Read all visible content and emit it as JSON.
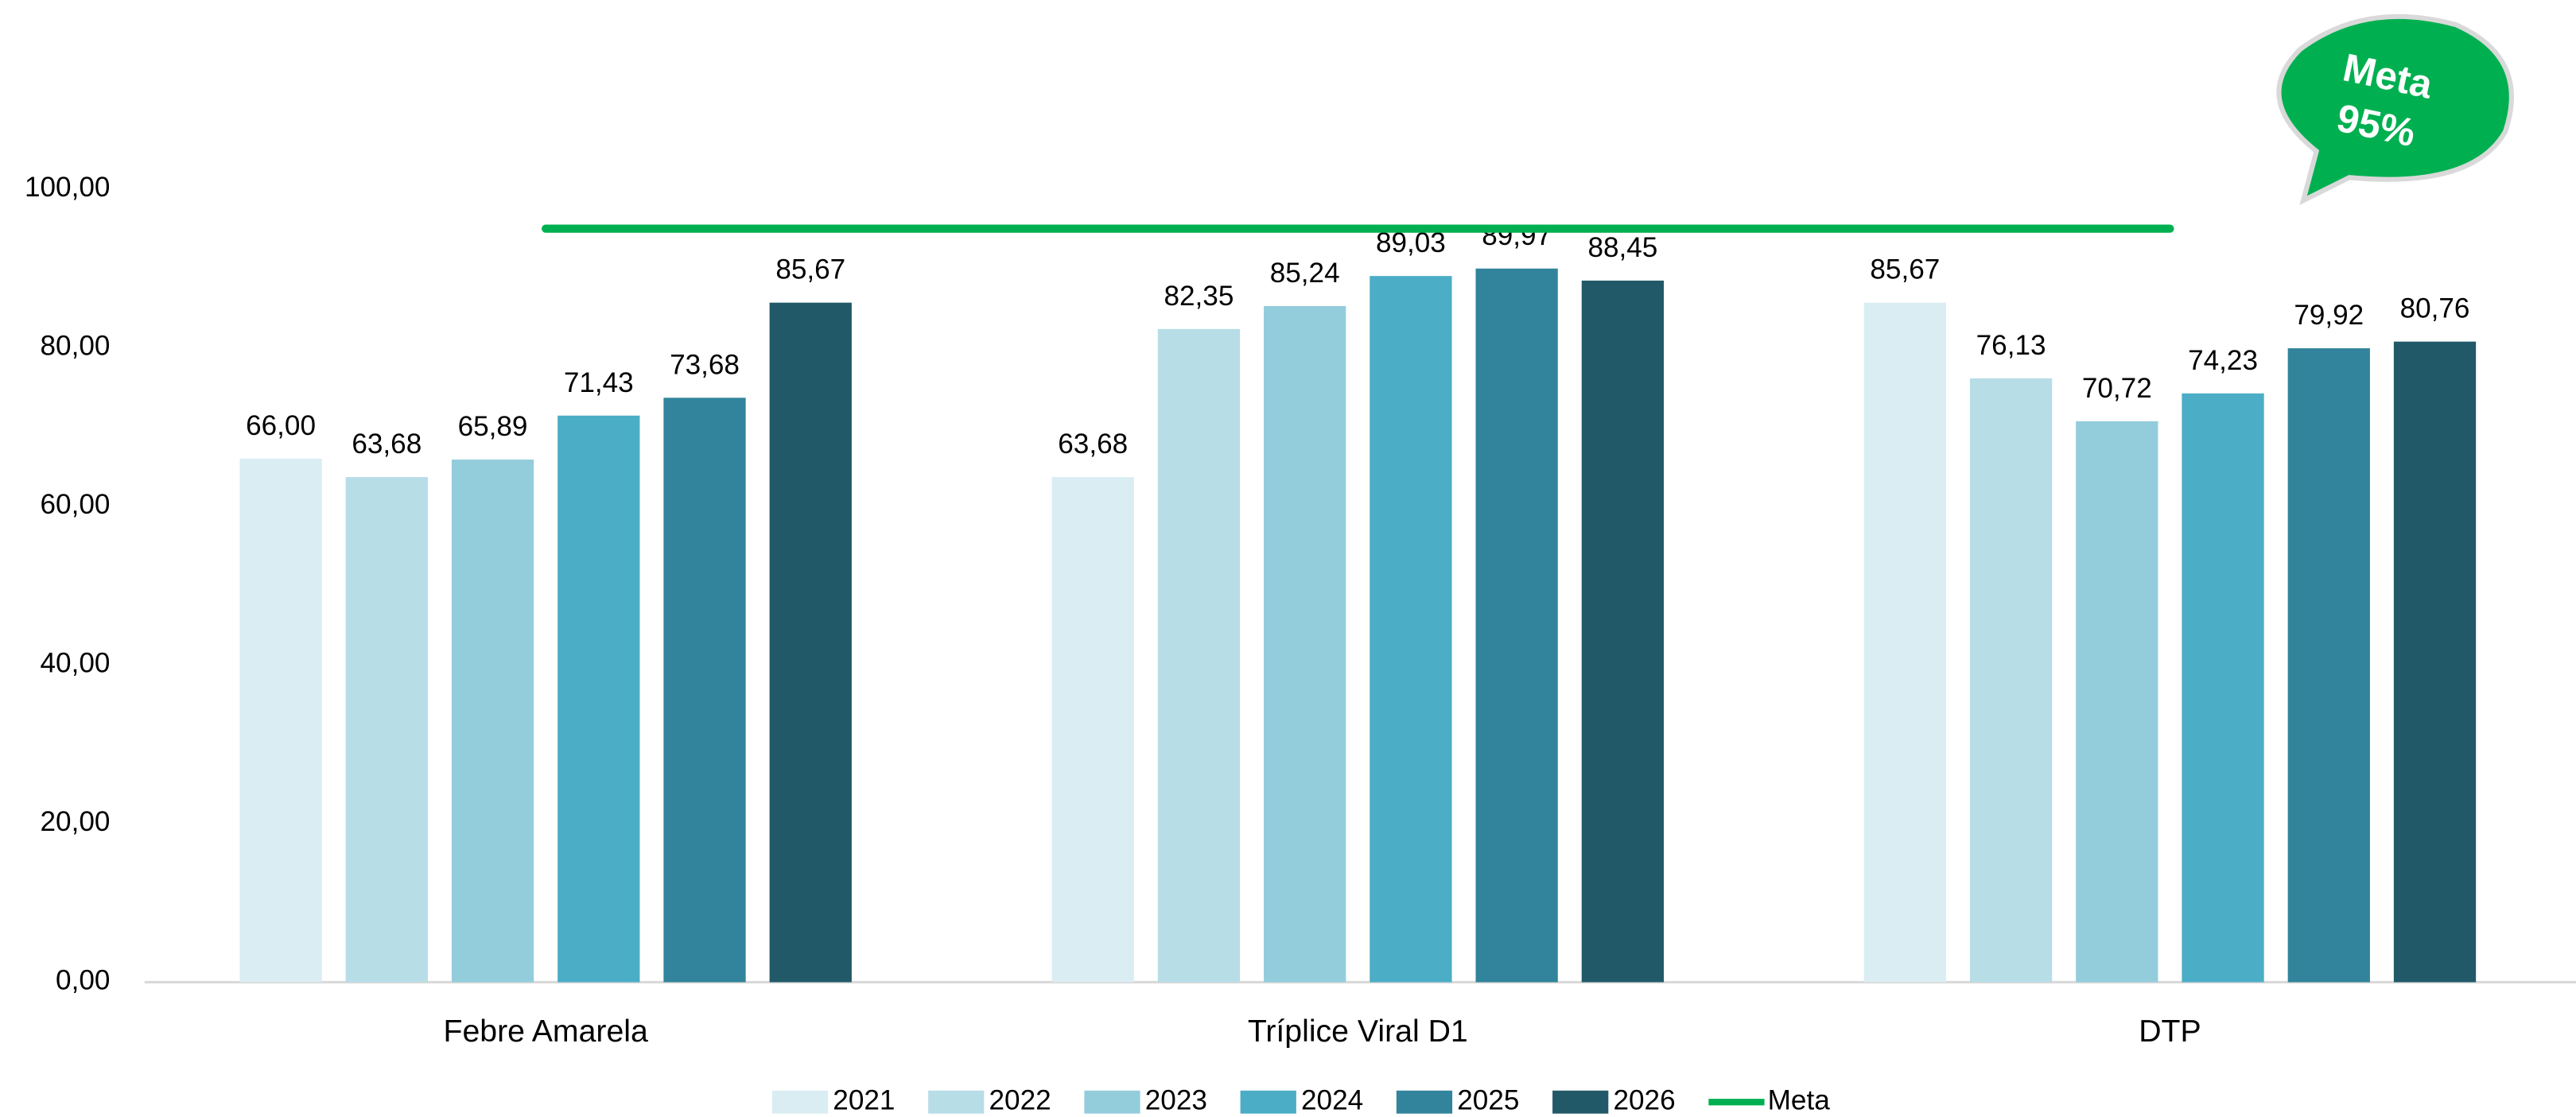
{
  "chart_data": {
    "type": "bar",
    "categories": [
      "Febre Amarela",
      "Tríplice Viral  D1",
      "DTP"
    ],
    "series": [
      {
        "name": "2021",
        "color": "#daedf3",
        "values": [
          66.0,
          63.68,
          85.67
        ],
        "value_labels": [
          "66,00",
          "63,68",
          "85,67"
        ]
      },
      {
        "name": "2022",
        "color": "#b7dde7",
        "values": [
          63.68,
          82.35,
          76.13
        ],
        "value_labels": [
          "63,68",
          "82,35",
          "76,13"
        ]
      },
      {
        "name": "2023",
        "color": "#93cddc",
        "values": [
          65.89,
          85.24,
          70.72
        ],
        "value_labels": [
          "65,89",
          "85,24",
          "70,72"
        ]
      },
      {
        "name": "2024",
        "color": "#4badc6",
        "values": [
          71.43,
          89.03,
          74.23
        ],
        "value_labels": [
          "71,43",
          "89,03",
          "74,23"
        ]
      },
      {
        "name": "2025",
        "color": "#31849b",
        "values": [
          73.68,
          89.97,
          79.92
        ],
        "value_labels": [
          "73,68",
          "89,97",
          "79,92"
        ]
      },
      {
        "name": "2026",
        "color": "#215968",
        "values": [
          85.67,
          88.45,
          80.76
        ],
        "value_labels": [
          "85,67",
          "88,45",
          "80,76"
        ]
      },
      {
        "name": "Meta",
        "type": "line",
        "color": "#00b050",
        "values": [
          95,
          95,
          95
        ]
      }
    ],
    "ylim": [
      0,
      100
    ],
    "yticks": [
      {
        "value": 0,
        "label": "0,00"
      },
      {
        "value": 20,
        "label": "20,00"
      },
      {
        "value": 40,
        "label": "40,00"
      },
      {
        "value": 60,
        "label": "60,00"
      },
      {
        "value": 80,
        "label": "80,00"
      },
      {
        "value": 100,
        "label": "100,00"
      }
    ],
    "grid": false,
    "legend": "bottom",
    "annotations": [
      "Meta",
      "95%"
    ]
  }
}
